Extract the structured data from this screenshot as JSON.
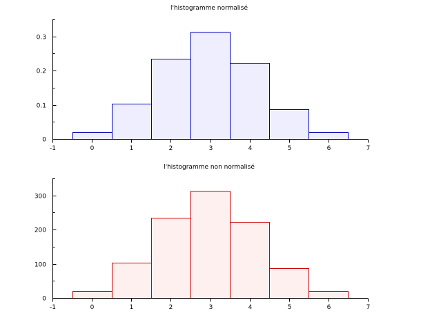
{
  "chart_data": [
    {
      "type": "bar",
      "title": "l'histogramme normalisé",
      "bins": [
        {
          "x0": -0.5,
          "x1": 0.5,
          "value": 0.02
        },
        {
          "x0": 0.5,
          "x1": 1.5,
          "value": 0.103
        },
        {
          "x0": 1.5,
          "x1": 2.5,
          "value": 0.234
        },
        {
          "x0": 2.5,
          "x1": 3.5,
          "value": 0.314
        },
        {
          "x0": 3.5,
          "x1": 4.5,
          "value": 0.223
        },
        {
          "x0": 4.5,
          "x1": 5.5,
          "value": 0.088
        },
        {
          "x0": 5.5,
          "x1": 6.5,
          "value": 0.02
        }
      ],
      "xlim": [
        -1,
        7
      ],
      "ylim": [
        0,
        0.35
      ],
      "xticks": [
        -1,
        0,
        1,
        2,
        3,
        4,
        5,
        6,
        7
      ],
      "xtick_labels": [
        "-1",
        "0",
        "1",
        "2",
        "3",
        "4",
        "5",
        "6",
        "7"
      ],
      "yticks": [
        0,
        0.1,
        0.2,
        0.3
      ],
      "ytick_labels": [
        "0",
        "0.1",
        "0.2",
        "0.3"
      ],
      "y_minor_step": 0.05,
      "grid": false,
      "colors": {
        "edge": "#0000b3",
        "fill": "#eeeeff"
      }
    },
    {
      "type": "bar",
      "title": "l'histogramme non normalisé",
      "bins": [
        {
          "x0": -0.5,
          "x1": 0.5,
          "value": 20
        },
        {
          "x0": 0.5,
          "x1": 1.5,
          "value": 103
        },
        {
          "x0": 1.5,
          "x1": 2.5,
          "value": 234
        },
        {
          "x0": 2.5,
          "x1": 3.5,
          "value": 314
        },
        {
          "x0": 3.5,
          "x1": 4.5,
          "value": 223
        },
        {
          "x0": 4.5,
          "x1": 5.5,
          "value": 88
        },
        {
          "x0": 5.5,
          "x1": 6.5,
          "value": 20
        }
      ],
      "xlim": [
        -1,
        7
      ],
      "ylim": [
        0,
        350
      ],
      "xticks": [
        -1,
        0,
        1,
        2,
        3,
        4,
        5,
        6,
        7
      ],
      "xtick_labels": [
        "-1",
        "0",
        "1",
        "2",
        "3",
        "4",
        "5",
        "6",
        "7"
      ],
      "yticks": [
        0,
        100,
        200,
        300
      ],
      "ytick_labels": [
        "0",
        "100",
        "200",
        "300"
      ],
      "y_minor_step": 50,
      "grid": false,
      "colors": {
        "edge": "#cc0000",
        "fill": "#fff0f0"
      }
    }
  ]
}
